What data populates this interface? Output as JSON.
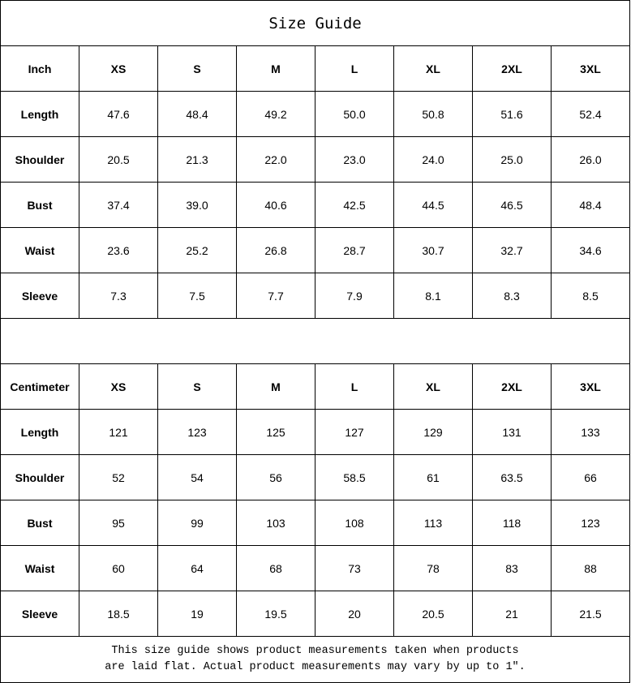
{
  "title": "Size Guide",
  "sizes": [
    "XS",
    "S",
    "M",
    "L",
    "XL",
    "2XL",
    "3XL"
  ],
  "tables": [
    {
      "unit": "Inch",
      "rows": [
        {
          "label": "Length",
          "values": [
            "47.6",
            "48.4",
            "49.2",
            "50.0",
            "50.8",
            "51.6",
            "52.4"
          ]
        },
        {
          "label": "Shoulder",
          "values": [
            "20.5",
            "21.3",
            "22.0",
            "23.0",
            "24.0",
            "25.0",
            "26.0"
          ]
        },
        {
          "label": "Bust",
          "values": [
            "37.4",
            "39.0",
            "40.6",
            "42.5",
            "44.5",
            "46.5",
            "48.4"
          ]
        },
        {
          "label": "Waist",
          "values": [
            "23.6",
            "25.2",
            "26.8",
            "28.7",
            "30.7",
            "32.7",
            "34.6"
          ]
        },
        {
          "label": "Sleeve",
          "values": [
            "7.3",
            "7.5",
            "7.7",
            "7.9",
            "8.1",
            "8.3",
            "8.5"
          ]
        }
      ]
    },
    {
      "unit": "Centimeter",
      "rows": [
        {
          "label": "Length",
          "values": [
            "121",
            "123",
            "125",
            "127",
            "129",
            "131",
            "133"
          ]
        },
        {
          "label": "Shoulder",
          "values": [
            "52",
            "54",
            "56",
            "58.5",
            "61",
            "63.5",
            "66"
          ]
        },
        {
          "label": "Bust",
          "values": [
            "95",
            "99",
            "103",
            "108",
            "113",
            "118",
            "123"
          ]
        },
        {
          "label": "Waist",
          "values": [
            "60",
            "64",
            "68",
            "73",
            "78",
            "83",
            "88"
          ]
        },
        {
          "label": "Sleeve",
          "values": [
            "18.5",
            "19",
            "19.5",
            "20",
            "20.5",
            "21",
            "21.5"
          ]
        }
      ]
    }
  ],
  "note": {
    "line1": "This size guide shows product measurements taken when products",
    "line2": "are laid flat. Actual product measurements may vary by up to 1″."
  }
}
